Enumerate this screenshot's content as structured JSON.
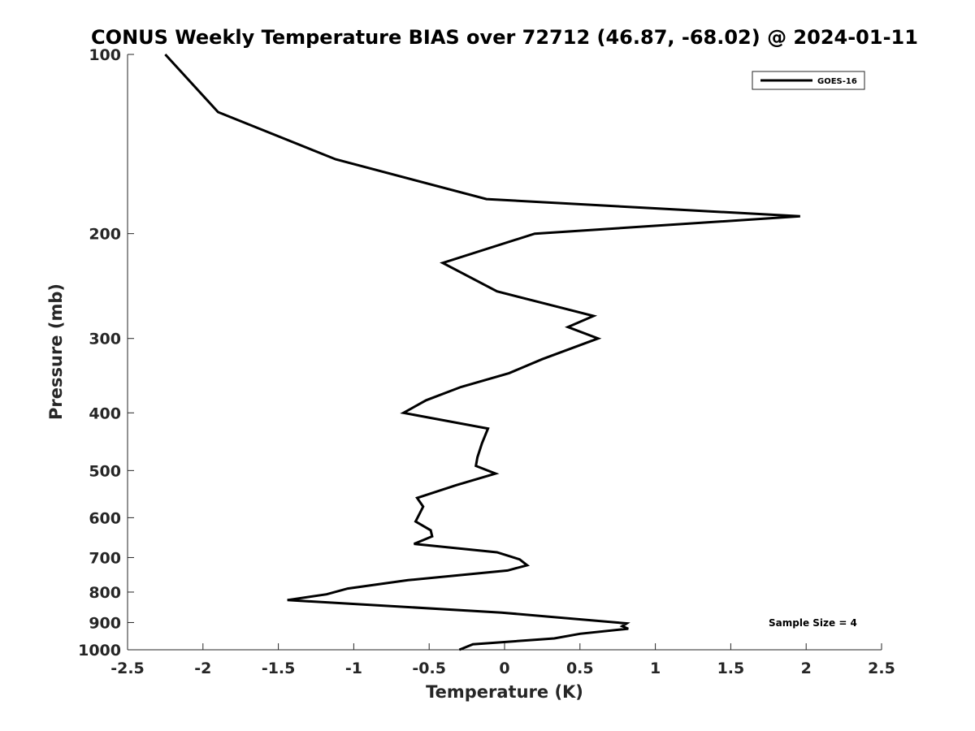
{
  "chart_data": {
    "type": "line",
    "title": "CONUS Weekly Temperature BIAS over 72712 (46.87, -68.02) @ 2024-01-11",
    "xlabel": "Temperature (K)",
    "ylabel": "Pressure (mb)",
    "xlim": [
      -2.5,
      2.5
    ],
    "ylim": [
      100,
      1000
    ],
    "y_scale": "log",
    "y_reversed": true,
    "xticks": [
      -2.5,
      -2,
      -1.5,
      -1,
      -0.5,
      0,
      0.5,
      1,
      1.5,
      2,
      2.5
    ],
    "xtick_labels": [
      "-2.5",
      "-2",
      "-1.5",
      "-1",
      "-0.5",
      "0",
      "0.5",
      "1",
      "1.5",
      "2",
      "2.5"
    ],
    "yticks": [
      100,
      200,
      300,
      400,
      500,
      600,
      700,
      800,
      900,
      1000
    ],
    "ytick_labels": [
      "100",
      "200",
      "300",
      "400",
      "500",
      "600",
      "700",
      "800",
      "900",
      "1000"
    ],
    "grid": false,
    "legend_position": "top-right",
    "series": [
      {
        "name": "GOES-16",
        "color": "#000000",
        "points": [
          {
            "x": -2.25,
            "y": 100
          },
          {
            "x": -1.9,
            "y": 125
          },
          {
            "x": -1.12,
            "y": 150
          },
          {
            "x": -0.12,
            "y": 175
          },
          {
            "x": 1.96,
            "y": 187
          },
          {
            "x": 0.2,
            "y": 200
          },
          {
            "x": -0.41,
            "y": 224
          },
          {
            "x": -0.05,
            "y": 250
          },
          {
            "x": 0.59,
            "y": 275
          },
          {
            "x": 0.42,
            "y": 287
          },
          {
            "x": 0.62,
            "y": 300
          },
          {
            "x": 0.25,
            "y": 325
          },
          {
            "x": 0.03,
            "y": 343
          },
          {
            "x": -0.29,
            "y": 362
          },
          {
            "x": -0.52,
            "y": 381
          },
          {
            "x": -0.67,
            "y": 400
          },
          {
            "x": -0.11,
            "y": 425
          },
          {
            "x": -0.15,
            "y": 450
          },
          {
            "x": -0.18,
            "y": 475
          },
          {
            "x": -0.19,
            "y": 491
          },
          {
            "x": -0.06,
            "y": 506
          },
          {
            "x": -0.32,
            "y": 529
          },
          {
            "x": -0.58,
            "y": 556
          },
          {
            "x": -0.54,
            "y": 575
          },
          {
            "x": -0.59,
            "y": 609
          },
          {
            "x": -0.49,
            "y": 630
          },
          {
            "x": -0.48,
            "y": 645
          },
          {
            "x": -0.6,
            "y": 664
          },
          {
            "x": -0.05,
            "y": 686
          },
          {
            "x": 0.1,
            "y": 705
          },
          {
            "x": 0.15,
            "y": 721
          },
          {
            "x": 0.02,
            "y": 736
          },
          {
            "x": -0.64,
            "y": 764
          },
          {
            "x": -1.04,
            "y": 789
          },
          {
            "x": -1.18,
            "y": 807
          },
          {
            "x": -1.44,
            "y": 825
          },
          {
            "x": -0.02,
            "y": 866
          },
          {
            "x": 0.81,
            "y": 903
          },
          {
            "x": 0.78,
            "y": 913
          },
          {
            "x": 0.82,
            "y": 922
          },
          {
            "x": 0.5,
            "y": 940
          },
          {
            "x": 0.33,
            "y": 957
          },
          {
            "x": -0.21,
            "y": 979
          },
          {
            "x": -0.3,
            "y": 1000
          }
        ]
      }
    ],
    "annotations": [
      {
        "text": "Sample Size = 4",
        "position": "bottom-right"
      }
    ]
  }
}
